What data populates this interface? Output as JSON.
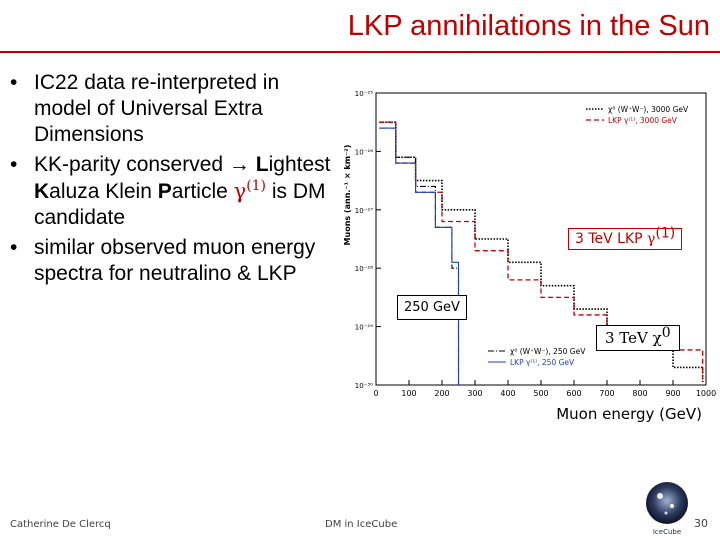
{
  "slide": {
    "title": "LKP annihilations in the Sun",
    "bullets": [
      {
        "text_a": "IC22 data re-interpreted in model of Universal Extra Dimensions"
      },
      {
        "text_a": "KK-parity conserved → ",
        "L": "L",
        "text_b": "ightest ",
        "K": "K",
        "text_c": "aluza Klein ",
        "P": "P",
        "text_d": "article ",
        "greek": "γ",
        "greek_sup": "(1)",
        "text_e": " is DM candidate"
      },
      {
        "text_a": "similar observed muon energy spectra for neutralino & LKP"
      }
    ],
    "footer_left": "Catherine De Clercq",
    "footer_mid": "DM in IceCube",
    "page_number": "30",
    "logo_text": "IceCube",
    "colors": {
      "title": "#c00000",
      "lkp": "#c00000"
    }
  },
  "chart_data": {
    "type": "line",
    "xlabel": "Muon energy (GeV)",
    "ylabel": "Muons (ann.⁻¹ × km⁻²)",
    "xlim": [
      0,
      1000
    ],
    "xticks": [
      "0",
      "100",
      "200",
      "300",
      "400",
      "500",
      "600",
      "700",
      "800",
      "900",
      "1000"
    ],
    "ylog": true,
    "ylim_exp": [
      -30,
      -25
    ],
    "yticks": [
      "10⁻²⁵",
      "10⁻²⁶",
      "10⁻²⁷",
      "10⁻²⁸",
      "10⁻²⁹",
      "10⁻³⁰"
    ],
    "legend_top": [
      {
        "label": "χ⁰ (W⁺W⁻), 3000 GeV",
        "style": "black-dotted"
      },
      {
        "label": "LKP γ⁽¹⁾, 3000 GeV",
        "style": "red-dashed"
      }
    ],
    "legend_bottom": [
      {
        "label": "χ⁰ (W⁺W⁻), 250 GeV",
        "style": "black-dashdot"
      },
      {
        "label": "LKP γ⁽¹⁾, 250 GeV",
        "style": "blue-solid"
      }
    ],
    "annotations": {
      "lkp_3tev": "3 TeV LKP ",
      "lkp_3tev_greek": "γ",
      "lkp_3tev_sup": "(1)",
      "gev250": "250 GeV",
      "neu_3tev": "3 TeV ",
      "neu_3tev_greek": "χ",
      "neu_3tev_sup": "0"
    },
    "series": [
      {
        "name": "χ⁰ (W⁺W⁻), 3000 GeV",
        "x": [
          10,
          60,
          120,
          200,
          300,
          400,
          500,
          600,
          700,
          800,
          900,
          990
        ],
        "log10y": [
          -25.5,
          -26.1,
          -26.5,
          -27.0,
          -27.5,
          -27.9,
          -28.3,
          -28.7,
          -29.1,
          -29.4,
          -29.7,
          -29.95
        ]
      },
      {
        "name": "LKP γ⁽¹⁾, 3000 GeV",
        "x": [
          10,
          60,
          120,
          200,
          300,
          400,
          500,
          600,
          700,
          800,
          900,
          990
        ],
        "log10y": [
          -25.5,
          -26.2,
          -26.7,
          -27.2,
          -27.7,
          -28.2,
          -28.5,
          -28.8,
          -29.1,
          -29.3,
          -29.4,
          -29.9
        ]
      },
      {
        "name": "χ⁰ (W⁺W⁻), 250 GeV",
        "x": [
          10,
          60,
          120,
          180,
          230,
          250
        ],
        "log10y": [
          -25.6,
          -26.1,
          -26.6,
          -27.3,
          -28.0,
          -30.0
        ]
      },
      {
        "name": "LKP γ⁽¹⁾, 250 GeV",
        "x": [
          10,
          60,
          120,
          180,
          230,
          250
        ],
        "log10y": [
          -25.6,
          -26.2,
          -26.7,
          -27.3,
          -27.9,
          -30.0
        ]
      }
    ]
  }
}
